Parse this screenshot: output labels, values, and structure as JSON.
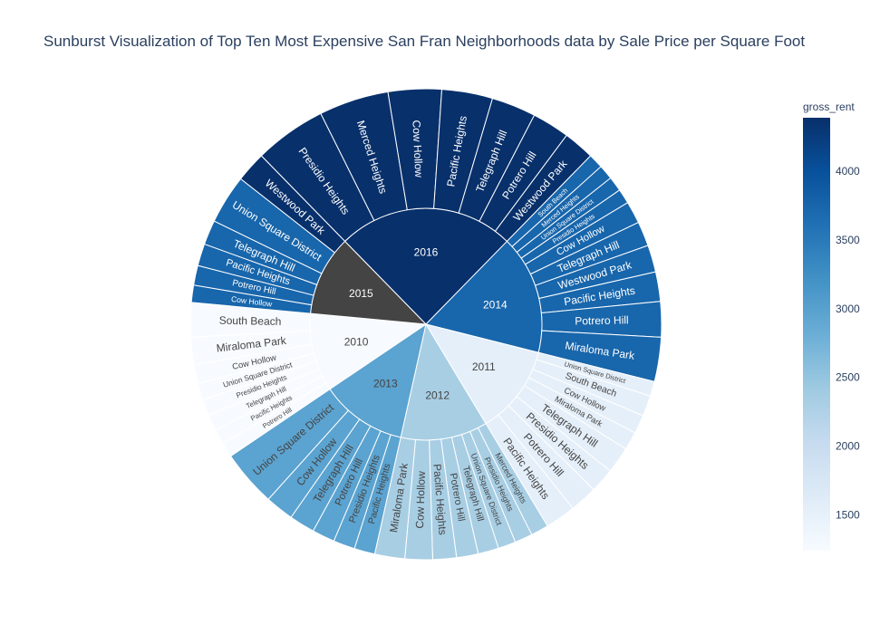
{
  "title": "Sunburst Visualization of Top Ten Most Expensive San Fran Neighborhoods data by Sale Price per Square Foot",
  "chart_data": {
    "type": "sunburst",
    "color_attribute": "gross_rent",
    "colorscale": [
      "#f7fbff",
      "#deebf7",
      "#c6dbef",
      "#9ecae1",
      "#6baed6",
      "#4292c6",
      "#2171b5",
      "#08519c",
      "#08306b"
    ],
    "color_range": [
      1239,
      4390
    ],
    "colorbar_ticks": [
      1500,
      2000,
      2500,
      3000,
      3500,
      4000
    ],
    "root_order": [
      "2016",
      "2014",
      "2011",
      "2012",
      "2013",
      "2010",
      "2015"
    ],
    "years": [
      {
        "label": "2016",
        "gross_rent": 4390,
        "neighborhoods": [
          {
            "label": "Presidio Heights",
            "gross_rent": 4390,
            "value": 1465
          },
          {
            "label": "Merced Heights",
            "gross_rent": 4390,
            "value": 1417
          },
          {
            "label": "Cow Hollow",
            "gross_rent": 4390,
            "value": 1083
          },
          {
            "label": "Pacific Heights",
            "gross_rent": 4390,
            "value": 1033
          },
          {
            "label": "Telegraph Hill",
            "gross_rent": 4390,
            "value": 903
          },
          {
            "label": "Potrero Hill",
            "gross_rent": 4390,
            "value": 762
          },
          {
            "label": "Westwood Park",
            "gross_rent": 4390,
            "value": 631
          }
        ]
      },
      {
        "label": "2014",
        "gross_rent": 3739,
        "neighborhoods": [
          {
            "label": "South Beach",
            "gross_rent": 3739,
            "value": 300
          },
          {
            "label": "Merced Heights",
            "gross_rent": 3739,
            "value": 300
          },
          {
            "label": "Union Square District",
            "gross_rent": 3739,
            "value": 300
          },
          {
            "label": "Presidio Heights",
            "gross_rent": 3739,
            "value": 300
          },
          {
            "label": "Cow Hollow",
            "gross_rent": 3739,
            "value": 450
          },
          {
            "label": "Telegraph Hill",
            "gross_rent": 3739,
            "value": 500
          },
          {
            "label": "Westwood Park",
            "gross_rent": 3739,
            "value": 550
          },
          {
            "label": "Pacific Heights",
            "gross_rent": 3739,
            "value": 600
          },
          {
            "label": "Potrero Hill",
            "gross_rent": 3739,
            "value": 720
          },
          {
            "label": "Miraloma Park",
            "gross_rent": 3739,
            "value": 900
          }
        ]
      },
      {
        "label": "2011",
        "gross_rent": 1530,
        "neighborhoods": [
          {
            "label": "Union Square District",
            "gross_rent": 1530,
            "value": 300
          },
          {
            "label": "South Beach",
            "gross_rent": 1530,
            "value": 420
          },
          {
            "label": "Cow Hollow",
            "gross_rent": 1530,
            "value": 380
          },
          {
            "label": "Miraloma Park",
            "gross_rent": 1530,
            "value": 370
          },
          {
            "label": "Telegraph Hill",
            "gross_rent": 1530,
            "value": 540
          },
          {
            "label": "Presidio Heights",
            "gross_rent": 1530,
            "value": 500
          },
          {
            "label": "Potrero Hill",
            "gross_rent": 1530,
            "value": 560
          },
          {
            "label": "Pacific Heights",
            "gross_rent": 1530,
            "value": 620
          }
        ]
      },
      {
        "label": "2012",
        "gross_rent": 2324,
        "neighborhoods": [
          {
            "label": "Merced Heights",
            "gross_rent": 2324,
            "value": 360
          },
          {
            "label": "Presidio Heights",
            "gross_rent": 2324,
            "value": 360
          },
          {
            "label": "Union Square District",
            "gross_rent": 2324,
            "value": 360
          },
          {
            "label": "Telegraph Hill",
            "gross_rent": 2324,
            "value": 420
          },
          {
            "label": "Potrero Hill",
            "gross_rent": 2324,
            "value": 440
          },
          {
            "label": "Pacific Heights",
            "gross_rent": 2324,
            "value": 480
          },
          {
            "label": "Cow Hollow",
            "gross_rent": 2324,
            "value": 560
          },
          {
            "label": "Miraloma Park",
            "gross_rent": 2324,
            "value": 610
          }
        ]
      },
      {
        "label": "2013",
        "gross_rent": 2971,
        "neighborhoods": [
          {
            "label": "Pacific Heights",
            "gross_rent": 2971,
            "value": 420
          },
          {
            "label": "Presidio Heights",
            "gross_rent": 2971,
            "value": 440
          },
          {
            "label": "Potrero Hill",
            "gross_rent": 2971,
            "value": 460
          },
          {
            "label": "Telegraph Hill",
            "gross_rent": 2971,
            "value": 520
          },
          {
            "label": "Cow Hollow",
            "gross_rent": 2971,
            "value": 580
          },
          {
            "label": "Union Square District",
            "gross_rent": 2971,
            "value": 1150
          }
        ]
      },
      {
        "label": "2010",
        "gross_rent": 1239,
        "neighborhoods": [
          {
            "label": "Potrero Hill",
            "gross_rent": 1239,
            "value": 300
          },
          {
            "label": "Pacific Heights",
            "gross_rent": 1239,
            "value": 310
          },
          {
            "label": "Telegraph Hill",
            "gross_rent": 1239,
            "value": 320
          },
          {
            "label": "Presidio Heights",
            "gross_rent": 1239,
            "value": 330
          },
          {
            "label": "Union Square District",
            "gross_rent": 1239,
            "value": 340
          },
          {
            "label": "Cow Hollow",
            "gross_rent": 1239,
            "value": 380
          },
          {
            "label": "Miraloma Park",
            "gross_rent": 1239,
            "value": 560
          },
          {
            "label": "South Beach",
            "gross_rent": 1239,
            "value": 700
          }
        ]
      },
      {
        "label": "2015",
        "gross_rent": null,
        "fill": "#444444",
        "neighborhoods": [
          {
            "label": "Cow Hollow",
            "gross_rent": 3739,
            "value": 350
          },
          {
            "label": "Potrero Hill",
            "gross_rent": 3739,
            "value": 400
          },
          {
            "label": "Pacific Heights",
            "gross_rent": 3739,
            "value": 450
          },
          {
            "label": "Telegraph Hill",
            "gross_rent": 3739,
            "value": 500
          },
          {
            "label": "Union Square District",
            "gross_rent": 3739,
            "value": 1000
          },
          {
            "label": "Westwood Park",
            "gross_rent": 4390,
            "value": 620
          }
        ]
      }
    ]
  }
}
